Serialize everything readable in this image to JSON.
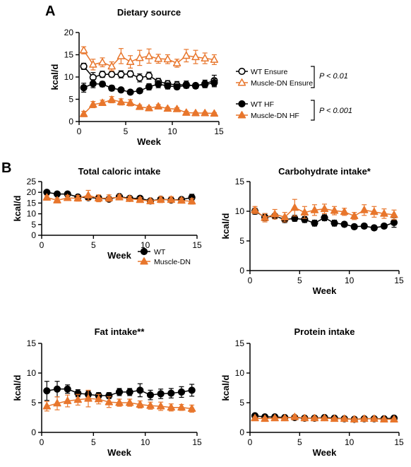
{
  "figure": {
    "panel_a_letter": "A",
    "panel_b_letter": "B",
    "pvalue_ensure": "P < 0.01",
    "pvalue_hf": "P < 0.001"
  },
  "colors": {
    "wt": "#000000",
    "dn": "#e8762c"
  },
  "chart_data": [
    {
      "type": "line",
      "title": "Dietary source",
      "xlabel": "Week",
      "ylabel": "kcal/d",
      "xlim": [
        0,
        15
      ],
      "ylim": [
        0,
        20
      ],
      "xticks": [
        0,
        5,
        10,
        15
      ],
      "yticks": [
        0,
        5,
        10,
        15,
        20
      ],
      "x": [
        0.5,
        1.5,
        2.5,
        3.5,
        4.5,
        5.5,
        6.5,
        7.5,
        8.5,
        9.5,
        10.5,
        11.5,
        12.5,
        13.5,
        14.5
      ],
      "legend_position": "right",
      "series": [
        {
          "name": "WT Ensure",
          "marker": "circle-open",
          "color": "#000000",
          "values": [
            12.4,
            9.9,
            10.6,
            10.6,
            10.6,
            10.7,
            9.8,
            10.3,
            9.0,
            8.5,
            8.2,
            8.3,
            8.0,
            8.5,
            9.2
          ],
          "err": [
            0.7,
            1.1,
            0.7,
            0.6,
            0.8,
            0.7,
            0.9,
            0.8,
            0.7,
            0.7,
            0.8,
            0.8,
            0.6,
            0.8,
            1.2
          ]
        },
        {
          "name": "Muscle-DN Ensure",
          "marker": "triangle-open",
          "color": "#e8762c",
          "values": [
            16.0,
            12.8,
            13.3,
            12.4,
            14.7,
            13.4,
            14.3,
            14.7,
            14.1,
            14.0,
            13.1,
            14.8,
            14.5,
            14.2,
            13.9
          ],
          "err": [
            0.8,
            1.2,
            1.0,
            1.0,
            1.7,
            1.4,
            1.7,
            1.6,
            1.0,
            1.0,
            0.9,
            1.4,
            1.5,
            1.2,
            1.1
          ]
        },
        {
          "name": "WT HF",
          "marker": "circle-filled",
          "color": "#000000",
          "values": [
            7.6,
            8.5,
            8.4,
            7.5,
            7.1,
            6.6,
            6.9,
            7.8,
            8.4,
            8.0,
            7.8,
            8.1,
            8.1,
            8.3,
            8.7
          ],
          "err": [
            1.0,
            0.9,
            0.6,
            0.6,
            0.4,
            0.4,
            0.5,
            0.7,
            0.8,
            0.7,
            0.6,
            0.6,
            0.5,
            0.7,
            0.9
          ]
        },
        {
          "name": "Muscle-DN HF",
          "marker": "triangle-filled",
          "color": "#e8762c",
          "values": [
            1.7,
            3.8,
            4.2,
            4.9,
            4.4,
            4.2,
            3.3,
            3.0,
            3.4,
            2.9,
            2.8,
            2.0,
            1.9,
            1.9,
            1.8
          ],
          "err": [
            0.6,
            0.7,
            0.6,
            0.7,
            0.7,
            0.7,
            0.4,
            0.4,
            0.4,
            0.3,
            0.3,
            0.3,
            0.2,
            0.2,
            0.2
          ]
        }
      ]
    },
    {
      "type": "line",
      "title": "Total caloric intake",
      "xlabel": "Week",
      "ylabel": "kcal/d",
      "xlim": [
        0,
        15
      ],
      "ylim": [
        0,
        25
      ],
      "xticks": [
        0,
        5,
        10,
        15
      ],
      "yticks": [
        0,
        5,
        10,
        15,
        20,
        25
      ],
      "x": [
        0.5,
        1.5,
        2.5,
        3.5,
        4.5,
        5.5,
        6.5,
        7.5,
        8.5,
        9.5,
        10.5,
        11.5,
        12.5,
        13.5,
        14.5
      ],
      "legend_position": "bottom-left",
      "series": [
        {
          "name": "WT",
          "marker": "circle-filled",
          "color": "#000000",
          "values": [
            20.0,
            19.2,
            19.2,
            17.8,
            17.5,
            17.3,
            16.8,
            18.0,
            17.2,
            17.2,
            16.0,
            16.8,
            16.4,
            16.6,
            17.6
          ],
          "err": [
            1.0,
            1.0,
            0.7,
            0.9,
            0.8,
            0.9,
            0.9,
            0.8,
            0.8,
            0.8,
            0.7,
            0.9,
            0.9,
            0.8,
            1.5
          ]
        },
        {
          "name": "Muscle-DN",
          "marker": "triangle-filled",
          "color": "#e8762c",
          "values": [
            17.6,
            16.3,
            17.4,
            17.2,
            18.6,
            17.2,
            17.3,
            17.7,
            17.0,
            16.5,
            15.9,
            16.6,
            16.6,
            16.2,
            15.8
          ],
          "err": [
            0.9,
            1.0,
            1.2,
            1.3,
            2.3,
            1.6,
            1.5,
            1.1,
            1.1,
            1.0,
            0.9,
            1.4,
            1.4,
            1.1,
            1.3
          ]
        }
      ]
    },
    {
      "type": "line",
      "title": "Carbohydrate intake*",
      "xlabel": "Week",
      "ylabel": "kcal/d",
      "xlim": [
        0,
        15
      ],
      "ylim": [
        0,
        15
      ],
      "xticks": [
        0,
        5,
        10,
        15
      ],
      "yticks": [
        0,
        5,
        10,
        15
      ],
      "x": [
        0.5,
        1.5,
        2.5,
        3.5,
        4.5,
        5.5,
        6.5,
        7.5,
        8.5,
        9.5,
        10.5,
        11.5,
        12.5,
        13.5,
        14.5
      ],
      "series": [
        {
          "name": "WT",
          "marker": "circle-filled",
          "color": "#000000",
          "values": [
            10.0,
            9.0,
            9.2,
            8.6,
            8.8,
            8.6,
            8.0,
            8.9,
            8.0,
            7.8,
            7.4,
            7.5,
            7.2,
            7.5,
            8.1
          ],
          "err": [
            0.5,
            0.6,
            0.4,
            0.5,
            0.5,
            0.5,
            0.5,
            0.5,
            0.5,
            0.4,
            0.4,
            0.4,
            0.3,
            0.4,
            0.8
          ]
        },
        {
          "name": "Muscle-DN",
          "marker": "triangle-filled",
          "color": "#e8762c",
          "values": [
            10.2,
            8.9,
            9.5,
            9.0,
            10.6,
            9.8,
            10.2,
            10.4,
            10.1,
            9.9,
            9.2,
            10.2,
            9.9,
            9.6,
            9.4
          ],
          "err": [
            0.6,
            0.7,
            0.8,
            0.8,
            1.4,
            1.0,
            0.9,
            0.8,
            0.7,
            0.6,
            0.6,
            0.9,
            0.9,
            0.8,
            0.8
          ]
        }
      ]
    },
    {
      "type": "line",
      "title": "Fat intake**",
      "xlabel": "Week",
      "ylabel": "kcal/d",
      "xlim": [
        0,
        15
      ],
      "ylim": [
        0,
        15
      ],
      "xticks": [
        0,
        5,
        10,
        15
      ],
      "yticks": [
        0,
        5,
        10,
        15
      ],
      "x": [
        0.5,
        1.5,
        2.5,
        3.5,
        4.5,
        5.5,
        6.5,
        7.5,
        8.5,
        9.5,
        10.5,
        11.5,
        12.5,
        13.5,
        14.5
      ],
      "series": [
        {
          "name": "WT",
          "marker": "circle-filled",
          "color": "#000000",
          "values": [
            7.0,
            7.3,
            7.3,
            6.6,
            6.4,
            6.2,
            6.2,
            6.8,
            6.8,
            7.1,
            6.3,
            6.5,
            6.6,
            6.8,
            7.1
          ],
          "err": [
            1.6,
            1.3,
            0.7,
            0.6,
            0.6,
            0.5,
            0.5,
            0.6,
            0.6,
            1.1,
            0.8,
            0.8,
            0.8,
            0.9,
            1.0
          ]
        },
        {
          "name": "Muscle-DN",
          "marker": "triangle-filled",
          "color": "#e8762c",
          "values": [
            4.4,
            4.9,
            5.3,
            5.5,
            5.7,
            5.6,
            5.1,
            5.0,
            5.0,
            4.7,
            4.5,
            4.4,
            4.2,
            4.2,
            4.0
          ],
          "err": [
            0.8,
            1.1,
            1.0,
            0.9,
            1.4,
            0.8,
            0.9,
            0.6,
            0.6,
            0.6,
            0.6,
            0.7,
            0.6,
            0.5,
            0.6
          ]
        }
      ]
    },
    {
      "type": "line",
      "title": "Protein intake",
      "xlabel": "Week",
      "ylabel": "kcal/d",
      "xlim": [
        0,
        15
      ],
      "ylim": [
        0,
        15
      ],
      "xticks": [
        0,
        5,
        10,
        15
      ],
      "yticks": [
        0,
        5,
        10,
        15
      ],
      "x": [
        0.5,
        1.5,
        2.5,
        3.5,
        4.5,
        5.5,
        6.5,
        7.5,
        8.5,
        9.5,
        10.5,
        11.5,
        12.5,
        13.5,
        14.5
      ],
      "series": [
        {
          "name": "WT",
          "marker": "circle-filled",
          "color": "#000000",
          "values": [
            2.8,
            2.6,
            2.6,
            2.5,
            2.5,
            2.4,
            2.4,
            2.5,
            2.4,
            2.3,
            2.2,
            2.3,
            2.3,
            2.3,
            2.4
          ],
          "err": [
            0.15,
            0.15,
            0.1,
            0.1,
            0.1,
            0.1,
            0.1,
            0.1,
            0.1,
            0.1,
            0.1,
            0.1,
            0.1,
            0.1,
            0.1
          ]
        },
        {
          "name": "Muscle-DN",
          "marker": "triangle-filled",
          "color": "#e8762c",
          "values": [
            2.4,
            2.3,
            2.4,
            2.4,
            2.6,
            2.4,
            2.4,
            2.4,
            2.3,
            2.3,
            2.2,
            2.3,
            2.3,
            2.2,
            2.2
          ],
          "err": [
            0.2,
            0.2,
            0.2,
            0.2,
            0.3,
            0.2,
            0.2,
            0.2,
            0.2,
            0.2,
            0.2,
            0.2,
            0.2,
            0.2,
            0.2
          ]
        }
      ]
    }
  ]
}
